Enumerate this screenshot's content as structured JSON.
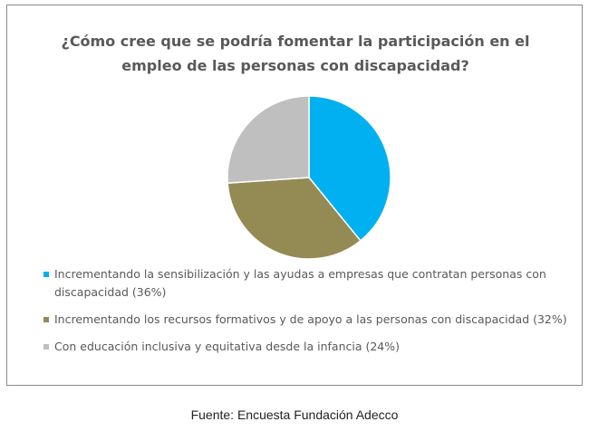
{
  "chart_data": {
    "type": "pie",
    "title": "¿Cómo cree que se podría fomentar la participación en el empleo de las personas con discapacidad?",
    "categories": [
      "Incrementando la sensibilización y las ayudas a empresas que contratan personas con discapacidad (36%)",
      "Incrementando los recursos formativos y de apoyo a las personas con discapacidad (32%)",
      "Con educación inclusiva y equitativa desde la infancia (24%)"
    ],
    "values": [
      36,
      32,
      24
    ],
    "colors": [
      "#00b0f0",
      "#948a54",
      "#bfbfbf"
    ],
    "source": "Fuente: Encuesta Fundación Adecco"
  }
}
